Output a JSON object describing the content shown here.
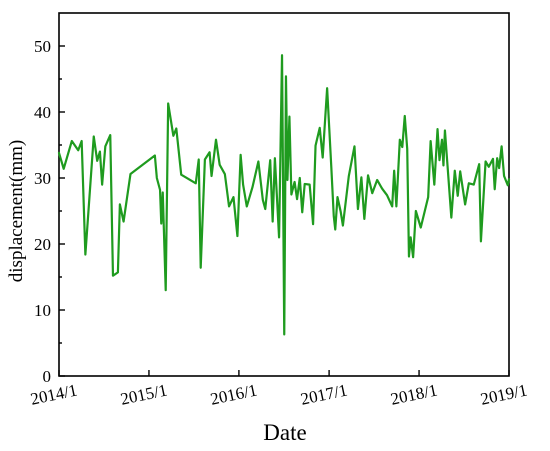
{
  "chart_data": {
    "type": "line",
    "xlabel": "Date",
    "ylabel": "displacement(mm)",
    "xlim": [
      "2014-01-01",
      "2019-01-01"
    ],
    "ylim": [
      0,
      55
    ],
    "x_ticks": [
      "2014-01-01",
      "2015-01-01",
      "2016-01-01",
      "2017-01-01",
      "2018-01-01",
      "2019-01-01"
    ],
    "x_tick_labels": [
      "2014/1",
      "2015/1",
      "2016/1",
      "2017/1",
      "2018/1",
      "2019/1"
    ],
    "y_ticks": [
      0,
      10,
      20,
      30,
      40,
      50
    ],
    "y_tick_labels": [
      "0",
      "10",
      "20",
      "30",
      "40",
      "50"
    ],
    "grid": false,
    "legend": "none",
    "series": [
      {
        "color": "#1f9b1f",
        "points": [
          [
            "2014-01-01",
            33.8
          ],
          [
            "2014-01-20",
            31.4
          ],
          [
            "2014-02-22",
            35.6
          ],
          [
            "2014-03-20",
            34.2
          ],
          [
            "2014-04-03",
            35.6
          ],
          [
            "2014-04-18",
            18.4
          ],
          [
            "2014-05-22",
            36.3
          ],
          [
            "2014-06-05",
            32.6
          ],
          [
            "2014-06-16",
            34.0
          ],
          [
            "2014-06-25",
            29.0
          ],
          [
            "2014-07-08",
            34.8
          ],
          [
            "2014-07-28",
            36.5
          ],
          [
            "2014-08-08",
            15.2
          ],
          [
            "2014-08-28",
            15.7
          ],
          [
            "2014-09-05",
            26.0
          ],
          [
            "2014-09-20",
            23.4
          ],
          [
            "2014-10-18",
            30.6
          ],
          [
            "2015-01-25",
            33.4
          ],
          [
            "2015-02-02",
            30.0
          ],
          [
            "2015-02-15",
            28.2
          ],
          [
            "2015-02-20",
            23.1
          ],
          [
            "2015-02-26",
            27.8
          ],
          [
            "2015-03-10",
            13.0
          ],
          [
            "2015-03-20",
            41.3
          ],
          [
            "2015-04-10",
            36.4
          ],
          [
            "2015-04-22",
            37.5
          ],
          [
            "2015-05-12",
            30.5
          ],
          [
            "2015-07-10",
            29.2
          ],
          [
            "2015-07-22",
            32.8
          ],
          [
            "2015-07-30",
            16.4
          ],
          [
            "2015-08-16",
            32.8
          ],
          [
            "2015-09-04",
            33.9
          ],
          [
            "2015-09-12",
            30.3
          ],
          [
            "2015-09-30",
            35.8
          ],
          [
            "2015-10-15",
            32.0
          ],
          [
            "2015-11-05",
            30.6
          ],
          [
            "2015-11-22",
            25.7
          ],
          [
            "2015-12-10",
            27.1
          ],
          [
            "2015-12-26",
            21.2
          ],
          [
            "2016-01-08",
            33.5
          ],
          [
            "2016-01-18",
            29.0
          ],
          [
            "2016-02-02",
            25.7
          ],
          [
            "2016-02-25",
            28.6
          ],
          [
            "2016-03-20",
            32.5
          ],
          [
            "2016-04-07",
            26.7
          ],
          [
            "2016-04-17",
            25.3
          ],
          [
            "2016-05-07",
            32.7
          ],
          [
            "2016-05-17",
            23.4
          ],
          [
            "2016-05-26",
            33.0
          ],
          [
            "2016-06-12",
            21.0
          ],
          [
            "2016-06-24",
            48.6
          ],
          [
            "2016-07-03",
            6.3
          ],
          [
            "2016-07-10",
            45.4
          ],
          [
            "2016-07-16",
            29.7
          ],
          [
            "2016-07-24",
            39.3
          ],
          [
            "2016-08-01",
            27.5
          ],
          [
            "2016-08-14",
            29.4
          ],
          [
            "2016-08-24",
            26.8
          ],
          [
            "2016-09-04",
            30.0
          ],
          [
            "2016-09-14",
            24.8
          ],
          [
            "2016-09-24",
            29.1
          ],
          [
            "2016-10-14",
            29.0
          ],
          [
            "2016-10-28",
            23.0
          ],
          [
            "2016-11-07",
            34.9
          ],
          [
            "2016-11-24",
            37.6
          ],
          [
            "2016-12-06",
            33.1
          ],
          [
            "2016-12-24",
            43.6
          ],
          [
            "2017-01-10",
            31.6
          ],
          [
            "2017-01-20",
            24.2
          ],
          [
            "2017-01-26",
            22.2
          ],
          [
            "2017-02-04",
            27.1
          ],
          [
            "2017-02-17",
            24.9
          ],
          [
            "2017-02-26",
            22.8
          ],
          [
            "2017-03-22",
            30.3
          ],
          [
            "2017-04-14",
            34.8
          ],
          [
            "2017-04-28",
            25.3
          ],
          [
            "2017-05-12",
            30.1
          ],
          [
            "2017-05-24",
            23.8
          ],
          [
            "2017-06-08",
            30.4
          ],
          [
            "2017-06-25",
            27.7
          ],
          [
            "2017-07-15",
            29.7
          ],
          [
            "2017-08-04",
            28.4
          ],
          [
            "2017-08-24",
            27.4
          ],
          [
            "2017-09-14",
            25.7
          ],
          [
            "2017-09-22",
            31.1
          ],
          [
            "2017-10-01",
            25.7
          ],
          [
            "2017-10-15",
            35.8
          ],
          [
            "2017-10-25",
            34.7
          ],
          [
            "2017-11-04",
            39.4
          ],
          [
            "2017-11-14",
            34.4
          ],
          [
            "2017-11-21",
            18.1
          ],
          [
            "2017-11-28",
            21.0
          ],
          [
            "2017-12-08",
            18.0
          ],
          [
            "2017-12-19",
            25.0
          ],
          [
            "2018-01-08",
            22.5
          ],
          [
            "2018-02-07",
            27.1
          ],
          [
            "2018-02-17",
            35.6
          ],
          [
            "2018-03-04",
            29.0
          ],
          [
            "2018-03-17",
            37.4
          ],
          [
            "2018-03-25",
            32.7
          ],
          [
            "2018-04-04",
            35.8
          ],
          [
            "2018-04-10",
            31.9
          ],
          [
            "2018-04-16",
            37.2
          ],
          [
            "2018-05-12",
            24.0
          ],
          [
            "2018-05-26",
            31.1
          ],
          [
            "2018-06-07",
            27.3
          ],
          [
            "2018-06-17",
            31.0
          ],
          [
            "2018-07-07",
            26.0
          ],
          [
            "2018-07-22",
            29.2
          ],
          [
            "2018-08-11",
            29.0
          ],
          [
            "2018-09-02",
            32.1
          ],
          [
            "2018-09-09",
            20.4
          ],
          [
            "2018-09-28",
            32.5
          ],
          [
            "2018-10-11",
            31.7
          ],
          [
            "2018-10-28",
            32.9
          ],
          [
            "2018-11-04",
            28.3
          ],
          [
            "2018-11-14",
            33.0
          ],
          [
            "2018-11-22",
            31.5
          ],
          [
            "2018-12-02",
            34.8
          ],
          [
            "2018-12-12",
            30.3
          ],
          [
            "2018-12-27",
            28.9
          ],
          [
            "2019-01-01",
            29.8
          ]
        ]
      }
    ]
  }
}
